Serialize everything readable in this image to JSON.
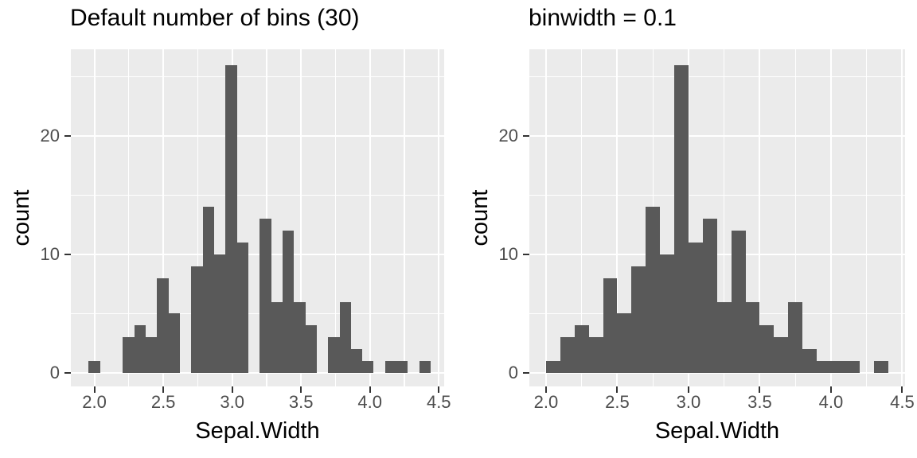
{
  "figure": {
    "background": "#FFFFFF",
    "panel_background": "#EBEBEB",
    "grid_color": "#FFFFFF",
    "bar_fill": "#595959",
    "tick_mark_color": "#333333",
    "axis_text_color": "#4D4D4D",
    "title_color": "#000000"
  },
  "chart_data": [
    {
      "type": "bar",
      "title": "Default number of bins (30)",
      "xlabel": "Sepal.Width",
      "ylabel": "count",
      "grid": true,
      "bin_origin": 1.9586,
      "bin_width": 0.0827586,
      "counts": [
        1,
        0,
        0,
        3,
        4,
        3,
        8,
        5,
        0,
        9,
        14,
        10,
        26,
        11,
        0,
        13,
        6,
        12,
        6,
        4,
        0,
        3,
        6,
        2,
        1,
        0,
        1,
        1,
        0,
        1
      ],
      "x_ticks": [
        {
          "v": 2.0,
          "label": "2.0"
        },
        {
          "v": 2.5,
          "label": "2.5"
        },
        {
          "v": 3.0,
          "label": "3.0"
        },
        {
          "v": 3.5,
          "label": "3.5"
        },
        {
          "v": 4.0,
          "label": "4.0"
        },
        {
          "v": 4.5,
          "label": "4.5"
        }
      ],
      "y_ticks": [
        {
          "v": 0,
          "label": "0"
        },
        {
          "v": 10,
          "label": "10"
        },
        {
          "v": 20,
          "label": "20"
        }
      ],
      "x_minor_ticks": [
        2.25,
        2.75,
        3.25,
        3.75,
        4.25
      ],
      "y_minor_ticks": [
        5,
        15,
        25
      ],
      "x_range": [
        1.829,
        4.539
      ],
      "y_range": [
        -1.14,
        27.31
      ],
      "layout": {
        "panel": [
          89,
          62,
          469,
          424
        ]
      }
    },
    {
      "type": "bar",
      "title": "binwidth = 0.1",
      "xlabel": "Sepal.Width",
      "ylabel": "count",
      "grid": true,
      "bin_origin": 2.0,
      "bin_width": 0.1,
      "counts": [
        1,
        3,
        4,
        3,
        8,
        5,
        9,
        14,
        10,
        26,
        11,
        13,
        6,
        12,
        6,
        4,
        3,
        6,
        2,
        1,
        1,
        1,
        0,
        1
      ],
      "x_ticks": [
        {
          "v": 2.0,
          "label": "2.0"
        },
        {
          "v": 2.5,
          "label": "2.5"
        },
        {
          "v": 3.0,
          "label": "3.0"
        },
        {
          "v": 3.5,
          "label": "3.5"
        },
        {
          "v": 4.0,
          "label": "4.0"
        },
        {
          "v": 4.5,
          "label": "4.5"
        }
      ],
      "y_ticks": [
        {
          "v": 0,
          "label": "0"
        },
        {
          "v": 10,
          "label": "10"
        },
        {
          "v": 20,
          "label": "20"
        }
      ],
      "x_minor_ticks": [
        2.25,
        2.75,
        3.25,
        3.75,
        4.25
      ],
      "y_minor_ticks": [
        5,
        15,
        25
      ],
      "x_range": [
        1.883,
        4.52
      ],
      "y_range": [
        -1.14,
        27.31
      ],
      "layout": {
        "panel": [
          665,
          62,
          472,
          424
        ]
      }
    }
  ]
}
